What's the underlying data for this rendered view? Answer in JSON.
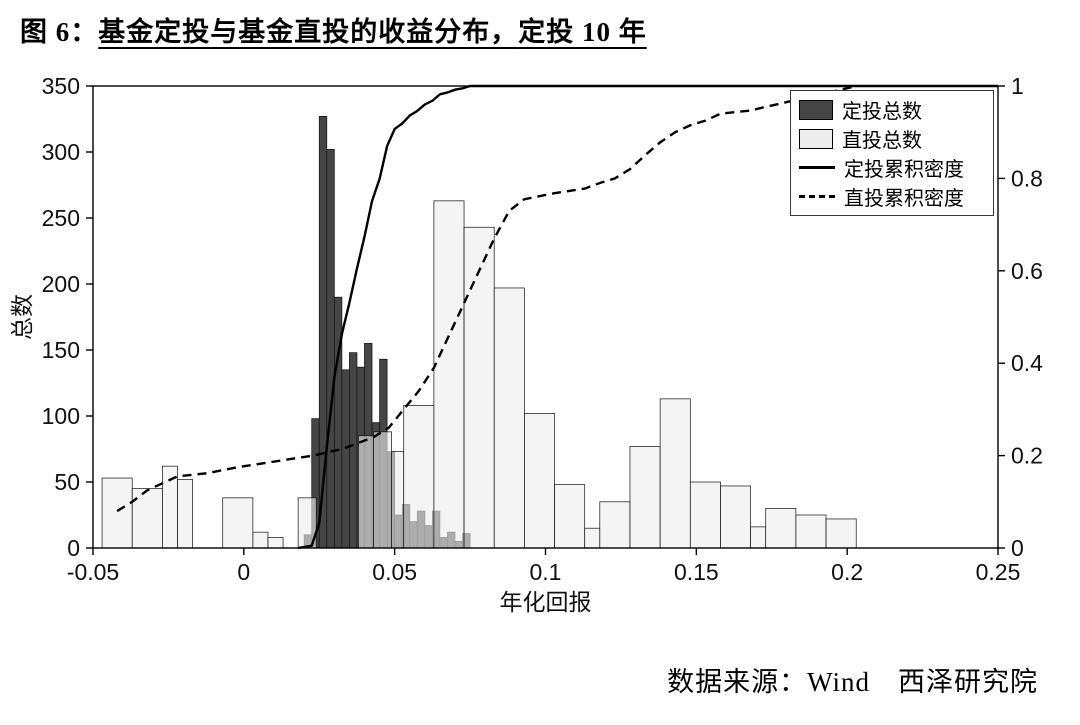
{
  "title": {
    "segments": [
      {
        "text": "图 6：",
        "underline": false
      },
      {
        "text": "基金定投与基金直投的收益分布，",
        "underline": true
      },
      {
        "text": "定投 10 年",
        "underline": true
      }
    ]
  },
  "source": {
    "text": "数据来源：Wind　西泽研究院"
  },
  "chart_data": {
    "type": "bar",
    "subtype": "histogram-with-cumulative-density",
    "title": "基金定投与基金直投的收益分布，定投 10 年",
    "xlabel": "年化回报",
    "ylabel": "总数",
    "xlim": [
      -0.05,
      0.25
    ],
    "ylim_left": [
      0,
      350
    ],
    "ylim_right": [
      0,
      1
    ],
    "grid": false,
    "legend_position": "top-right",
    "x_ticks": [
      {
        "v": -0.05,
        "label": "-0.05"
      },
      {
        "v": 0,
        "label": "0"
      },
      {
        "v": 0.05,
        "label": "0.05"
      },
      {
        "v": 0.1,
        "label": "0.1"
      },
      {
        "v": 0.15,
        "label": "0.15"
      },
      {
        "v": 0.2,
        "label": "0.2"
      },
      {
        "v": 0.25,
        "label": "0.25"
      }
    ],
    "y_ticks_left": [
      {
        "v": 0,
        "label": "0"
      },
      {
        "v": 50,
        "label": "50"
      },
      {
        "v": 100,
        "label": "100"
      },
      {
        "v": 150,
        "label": "150"
      },
      {
        "v": 200,
        "label": "200"
      },
      {
        "v": 250,
        "label": "250"
      },
      {
        "v": 300,
        "label": "300"
      },
      {
        "v": 350,
        "label": "350"
      }
    ],
    "y_ticks_right": [
      {
        "v": 0,
        "label": "0"
      },
      {
        "v": 0.2,
        "label": "0.2"
      },
      {
        "v": 0.4,
        "label": "0.4"
      },
      {
        "v": 0.6,
        "label": "0.6"
      },
      {
        "v": 0.8,
        "label": "0.8"
      },
      {
        "v": 1,
        "label": "1"
      }
    ],
    "legend": [
      {
        "label": "定投总数",
        "type": "bar",
        "color": "#454545"
      },
      {
        "label": "直投总数",
        "type": "bar",
        "color": "#ededed"
      },
      {
        "label": "定投累积密度",
        "type": "line",
        "style": "solid"
      },
      {
        "label": "直投累积密度",
        "type": "line",
        "style": "dashed"
      }
    ],
    "series": {
      "dark_bars": {
        "name": "定投总数",
        "color": "#454545",
        "edge": "#111111",
        "bars": [
          [
            0.02,
            0.0025,
            10
          ],
          [
            0.0225,
            0.0025,
            98
          ],
          [
            0.025,
            0.0025,
            327
          ],
          [
            0.0275,
            0.0025,
            302
          ],
          [
            0.03,
            0.0025,
            190
          ],
          [
            0.0325,
            0.0025,
            135
          ],
          [
            0.035,
            0.0025,
            148
          ],
          [
            0.0375,
            0.0025,
            137
          ],
          [
            0.04,
            0.0025,
            155
          ],
          [
            0.0425,
            0.0025,
            95
          ],
          [
            0.045,
            0.0025,
            143
          ],
          [
            0.0475,
            0.0025,
            73
          ],
          [
            0.05,
            0.0025,
            25
          ],
          [
            0.0525,
            0.0025,
            33
          ],
          [
            0.055,
            0.0025,
            20
          ],
          [
            0.0575,
            0.0025,
            28
          ],
          [
            0.06,
            0.0025,
            17
          ],
          [
            0.0625,
            0.0025,
            28
          ],
          [
            0.065,
            0.0025,
            8
          ],
          [
            0.0675,
            0.0025,
            12
          ],
          [
            0.07,
            0.0025,
            5
          ],
          [
            0.0725,
            0.0025,
            11
          ]
        ]
      },
      "light_bars": {
        "name": "直投总数",
        "color": "#ededed",
        "edge": "#111111",
        "alpha": 0.62,
        "bars": [
          [
            -0.047,
            0.01,
            53
          ],
          [
            -0.037,
            0.01,
            45
          ],
          [
            -0.027,
            0.005,
            62
          ],
          [
            -0.022,
            0.005,
            52
          ],
          [
            -0.007,
            0.01,
            38
          ],
          [
            0.003,
            0.005,
            12
          ],
          [
            0.008,
            0.005,
            8
          ],
          [
            0.018,
            0.006,
            38
          ],
          [
            0.038,
            0.005,
            85
          ],
          [
            0.043,
            0.006,
            88
          ],
          [
            0.049,
            0.004,
            73
          ],
          [
            0.053,
            0.01,
            108
          ],
          [
            0.063,
            0.01,
            263
          ],
          [
            0.073,
            0.01,
            243
          ],
          [
            0.083,
            0.01,
            197
          ],
          [
            0.093,
            0.01,
            102
          ],
          [
            0.103,
            0.01,
            48
          ],
          [
            0.113,
            0.005,
            15
          ],
          [
            0.118,
            0.01,
            35
          ],
          [
            0.128,
            0.01,
            77
          ],
          [
            0.138,
            0.01,
            113
          ],
          [
            0.148,
            0.01,
            50
          ],
          [
            0.158,
            0.01,
            47
          ],
          [
            0.168,
            0.005,
            16
          ],
          [
            0.173,
            0.01,
            30
          ],
          [
            0.183,
            0.01,
            25
          ],
          [
            0.193,
            0.01,
            22
          ]
        ]
      },
      "solid_line": {
        "name": "定投累积密度",
        "style": "solid",
        "color": "#000000",
        "points": [
          [
            0.018,
            0
          ],
          [
            0.0225,
            0.005
          ],
          [
            0.025,
            0.054
          ],
          [
            0.0275,
            0.218
          ],
          [
            0.03,
            0.369
          ],
          [
            0.0325,
            0.463
          ],
          [
            0.035,
            0.531
          ],
          [
            0.0375,
            0.605
          ],
          [
            0.04,
            0.674
          ],
          [
            0.0425,
            0.751
          ],
          [
            0.045,
            0.799
          ],
          [
            0.0475,
            0.87
          ],
          [
            0.05,
            0.907
          ],
          [
            0.0525,
            0.919
          ],
          [
            0.055,
            0.936
          ],
          [
            0.0575,
            0.946
          ],
          [
            0.06,
            0.96
          ],
          [
            0.0625,
            0.968
          ],
          [
            0.065,
            0.982
          ],
          [
            0.0675,
            0.986
          ],
          [
            0.07,
            0.992
          ],
          [
            0.0725,
            0.995
          ],
          [
            0.075,
            1
          ],
          [
            0.25,
            1
          ]
        ]
      },
      "dashed_line": {
        "name": "直投累积密度",
        "style": "dashed",
        "color": "#000000",
        "points": [
          [
            -0.042,
            0.08
          ],
          [
            -0.037,
            0.1
          ],
          [
            -0.032,
            0.125
          ],
          [
            -0.027,
            0.14
          ],
          [
            -0.022,
            0.155
          ],
          [
            -0.012,
            0.162
          ],
          [
            -0.002,
            0.175
          ],
          [
            0.003,
            0.18
          ],
          [
            0.013,
            0.19
          ],
          [
            0.023,
            0.2
          ],
          [
            0.033,
            0.215
          ],
          [
            0.043,
            0.24
          ],
          [
            0.048,
            0.26
          ],
          [
            0.053,
            0.3
          ],
          [
            0.058,
            0.34
          ],
          [
            0.063,
            0.39
          ],
          [
            0.068,
            0.46
          ],
          [
            0.073,
            0.53
          ],
          [
            0.078,
            0.6
          ],
          [
            0.083,
            0.67
          ],
          [
            0.088,
            0.73
          ],
          [
            0.093,
            0.755
          ],
          [
            0.103,
            0.768
          ],
          [
            0.113,
            0.778
          ],
          [
            0.118,
            0.79
          ],
          [
            0.123,
            0.8
          ],
          [
            0.128,
            0.82
          ],
          [
            0.133,
            0.85
          ],
          [
            0.138,
            0.878
          ],
          [
            0.143,
            0.9
          ],
          [
            0.148,
            0.915
          ],
          [
            0.153,
            0.925
          ],
          [
            0.158,
            0.94
          ],
          [
            0.168,
            0.947
          ],
          [
            0.173,
            0.955
          ],
          [
            0.178,
            0.962
          ],
          [
            0.183,
            0.97
          ],
          [
            0.188,
            0.977
          ],
          [
            0.193,
            0.985
          ],
          [
            0.198,
            0.992
          ],
          [
            0.203,
            1
          ]
        ]
      }
    }
  }
}
